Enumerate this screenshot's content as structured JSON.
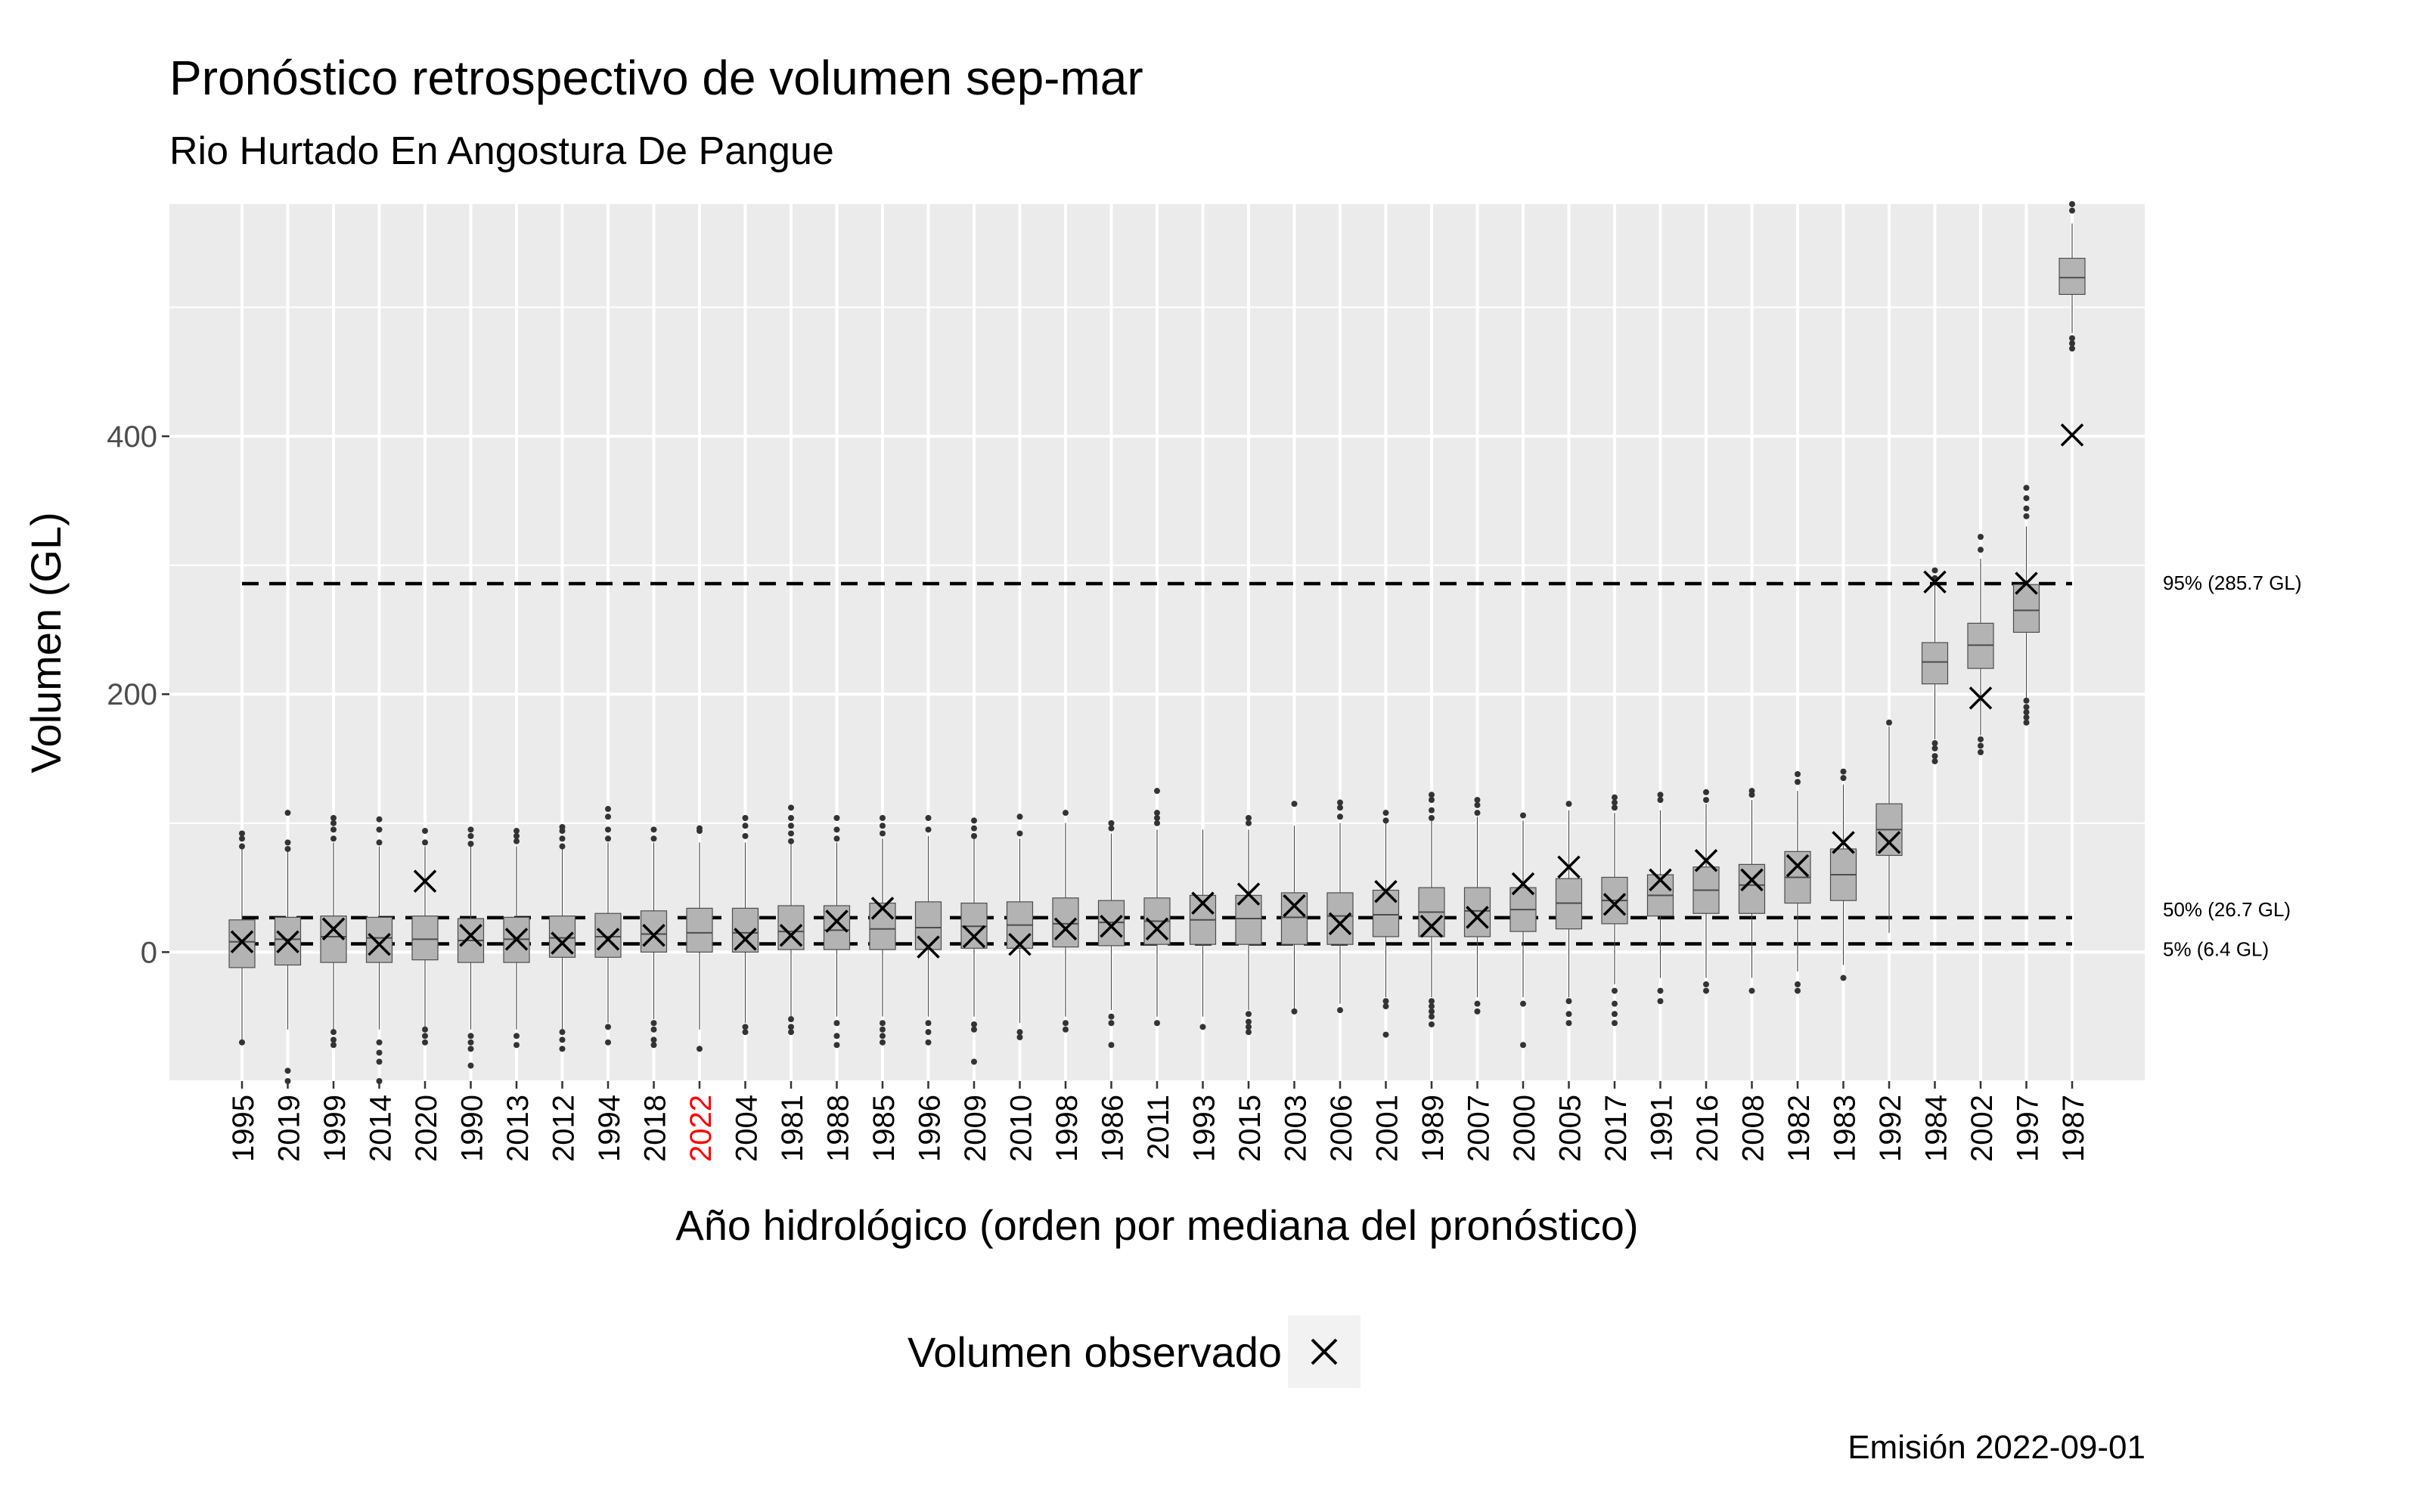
{
  "title": "Pronóstico retrospectivo de volumen sep-mar",
  "subtitle": "Rio Hurtado En Angostura De Pangue",
  "caption": "Emisión 2022-09-01",
  "legend": {
    "title": "",
    "label": "Volumen observado",
    "symbol": "×"
  },
  "colors": {
    "panel": "#ebebeb",
    "grid": "#ffffff",
    "box_fill": "#b3b3b3",
    "box_line": "#4d4d4d",
    "highlight_year": "#ff0000"
  },
  "chart_data": {
    "type": "boxplot",
    "xlabel": "Año hidrológico (orden por mediana del pronóstico)",
    "ylabel": "Volumen (GL)",
    "ylim": [
      -100,
      580
    ],
    "yticks": [
      0,
      200,
      400
    ],
    "highlight_category": "2022",
    "categories": [
      "1995",
      "2019",
      "1999",
      "2014",
      "2020",
      "1990",
      "2013",
      "2012",
      "1994",
      "2018",
      "2022",
      "2004",
      "1981",
      "1988",
      "1985",
      "1996",
      "2009",
      "2010",
      "1998",
      "1986",
      "2011",
      "1993",
      "2015",
      "2003",
      "2006",
      "2001",
      "1989",
      "2007",
      "2000",
      "2005",
      "2017",
      "1991",
      "2016",
      "2008",
      "1982",
      "1983",
      "1992",
      "1984",
      "2002",
      "1997",
      "1987"
    ],
    "boxes": [
      {
        "q1": -12,
        "median": 8,
        "q3": 25,
        "lo": -70,
        "hi": 80,
        "out": [
          -70,
          82,
          88,
          92
        ]
      },
      {
        "q1": -10,
        "median": 10,
        "q3": 27,
        "lo": -60,
        "hi": 80,
        "out": [
          -92,
          -100,
          80,
          85,
          108
        ]
      },
      {
        "q1": -8,
        "median": 12,
        "q3": 28,
        "lo": -60,
        "hi": 85,
        "out": [
          -62,
          -68,
          -72,
          88,
          95,
          100,
          104
        ]
      },
      {
        "q1": -8,
        "median": 11,
        "q3": 27,
        "lo": -60,
        "hi": 82,
        "out": [
          -70,
          -78,
          -85,
          -100,
          85,
          95,
          103
        ]
      },
      {
        "q1": -6,
        "median": 10,
        "q3": 28,
        "lo": -60,
        "hi": 82,
        "out": [
          -60,
          -65,
          -70,
          85,
          94
        ]
      },
      {
        "q1": -8,
        "median": 9,
        "q3": 26,
        "lo": -60,
        "hi": 82,
        "out": [
          -65,
          -70,
          -75,
          -88,
          84,
          90,
          95
        ]
      },
      {
        "q1": -8,
        "median": 10,
        "q3": 27,
        "lo": -60,
        "hi": 82,
        "out": [
          -65,
          -72,
          86,
          90,
          94
        ]
      },
      {
        "q1": -4,
        "median": 11,
        "q3": 28,
        "lo": -60,
        "hi": 82,
        "out": [
          -62,
          -68,
          -75,
          82,
          88,
          94,
          97
        ]
      },
      {
        "q1": -4,
        "median": 12,
        "q3": 30,
        "lo": -55,
        "hi": 85,
        "out": [
          -58,
          -70,
          88,
          95,
          105,
          111
        ]
      },
      {
        "q1": 0,
        "median": 14,
        "q3": 32,
        "lo": -52,
        "hi": 85,
        "out": [
          -55,
          -60,
          -68,
          -72,
          88,
          95
        ]
      },
      {
        "q1": 0,
        "median": 15,
        "q3": 34,
        "lo": -60,
        "hi": 85,
        "out": [
          -75,
          94,
          96
        ]
      },
      {
        "q1": 0,
        "median": 15,
        "q3": 34,
        "lo": -55,
        "hi": 85,
        "out": [
          -58,
          -62,
          90,
          98,
          104
        ]
      },
      {
        "q1": 2,
        "median": 16,
        "q3": 36,
        "lo": -50,
        "hi": 85,
        "out": [
          -52,
          -58,
          -62,
          86,
          92,
          98,
          104,
          112
        ]
      },
      {
        "q1": 2,
        "median": 17,
        "q3": 36,
        "lo": -50,
        "hi": 85,
        "out": [
          -55,
          -65,
          -72,
          88,
          95,
          104
        ]
      },
      {
        "q1": 2,
        "median": 18,
        "q3": 38,
        "lo": -50,
        "hi": 88,
        "out": [
          -55,
          -60,
          -65,
          -70,
          92,
          98,
          104
        ]
      },
      {
        "q1": 2,
        "median": 19,
        "q3": 39,
        "lo": -50,
        "hi": 90,
        "out": [
          -55,
          -62,
          -70,
          95,
          104
        ]
      },
      {
        "q1": 3,
        "median": 20,
        "q3": 38,
        "lo": -50,
        "hi": 88,
        "out": [
          -56,
          -60,
          -85,
          90,
          96,
          102
        ]
      },
      {
        "q1": 3,
        "median": 21,
        "q3": 39,
        "lo": -55,
        "hi": 88,
        "out": [
          -62,
          -66,
          92,
          105
        ]
      },
      {
        "q1": 4,
        "median": 22,
        "q3": 42,
        "lo": -50,
        "hi": 100,
        "out": [
          -55,
          -60,
          108
        ]
      },
      {
        "q1": 5,
        "median": 23,
        "q3": 40,
        "lo": -45,
        "hi": 92,
        "out": [
          -50,
          -55,
          -72,
          96,
          100
        ]
      },
      {
        "q1": 6,
        "median": 24,
        "q3": 42,
        "lo": -50,
        "hi": 95,
        "out": [
          -55,
          100,
          104,
          108,
          125
        ]
      },
      {
        "q1": 6,
        "median": 25,
        "q3": 44,
        "lo": -50,
        "hi": 95,
        "out": [
          -58
        ]
      },
      {
        "q1": 6,
        "median": 26,
        "q3": 44,
        "lo": -45,
        "hi": 95,
        "out": [
          -48,
          -54,
          -58,
          -62,
          100,
          104
        ]
      },
      {
        "q1": 6,
        "median": 27,
        "q3": 46,
        "lo": -45,
        "hi": 98,
        "out": [
          -46,
          115
        ]
      },
      {
        "q1": 6,
        "median": 28,
        "q3": 46,
        "lo": -40,
        "hi": 100,
        "out": [
          -45,
          105,
          112,
          116
        ]
      },
      {
        "q1": 12,
        "median": 29,
        "q3": 48,
        "lo": -35,
        "hi": 100,
        "out": [
          -38,
          -42,
          -64,
          102,
          108
        ]
      },
      {
        "q1": 12,
        "median": 31,
        "q3": 50,
        "lo": -35,
        "hi": 102,
        "out": [
          -38,
          -42,
          -46,
          -50,
          -56,
          104,
          110,
          118,
          122
        ]
      },
      {
        "q1": 12,
        "median": 32,
        "q3": 50,
        "lo": -35,
        "hi": 105,
        "out": [
          -40,
          -46,
          108,
          114,
          118
        ]
      },
      {
        "q1": 16,
        "median": 33,
        "q3": 50,
        "lo": -35,
        "hi": 102,
        "out": [
          -40,
          -72,
          106
        ]
      },
      {
        "q1": 18,
        "median": 38,
        "q3": 57,
        "lo": -35,
        "hi": 110,
        "out": [
          -38,
          -48,
          -55,
          115
        ]
      },
      {
        "q1": 22,
        "median": 40,
        "q3": 58,
        "lo": -25,
        "hi": 108,
        "out": [
          -30,
          -40,
          -48,
          -55,
          112,
          116,
          120
        ]
      },
      {
        "q1": 28,
        "median": 44,
        "q3": 60,
        "lo": -20,
        "hi": 110,
        "out": [
          -30,
          -38,
          118,
          122
        ]
      },
      {
        "q1": 30,
        "median": 48,
        "q3": 66,
        "lo": -20,
        "hi": 115,
        "out": [
          -25,
          -30,
          118,
          124
        ]
      },
      {
        "q1": 30,
        "median": 52,
        "q3": 68,
        "lo": -20,
        "hi": 118,
        "out": [
          -30,
          122,
          125
        ]
      },
      {
        "q1": 38,
        "median": 58,
        "q3": 78,
        "lo": -15,
        "hi": 125,
        "out": [
          -25,
          -30,
          132,
          138
        ]
      },
      {
        "q1": 40,
        "median": 60,
        "q3": 80,
        "lo": -10,
        "hi": 130,
        "out": [
          -20,
          135,
          140
        ]
      },
      {
        "q1": 75,
        "median": 95,
        "q3": 115,
        "lo": 15,
        "hi": 175,
        "out": [
          178
        ]
      },
      {
        "q1": 208,
        "median": 225,
        "q3": 240,
        "lo": 165,
        "hi": 285,
        "out": [
          148,
          152,
          158,
          162,
          290,
          296
        ]
      },
      {
        "q1": 220,
        "median": 238,
        "q3": 255,
        "lo": 168,
        "hi": 305,
        "out": [
          155,
          160,
          165,
          312,
          322
        ]
      },
      {
        "q1": 248,
        "median": 265,
        "q3": 285,
        "lo": 195,
        "hi": 330,
        "out": [
          178,
          182,
          186,
          190,
          195,
          338,
          344,
          352,
          360
        ]
      },
      {
        "q1": 510,
        "median": 523,
        "q3": 538,
        "lo": 480,
        "hi": 565,
        "out": [
          468,
          472,
          476,
          575,
          580
        ]
      }
    ],
    "observed": [
      8,
      8,
      18,
      6,
      55,
      13,
      10,
      7,
      10,
      13,
      null,
      10,
      13,
      24,
      34,
      4,
      12,
      6,
      18,
      20,
      18,
      38,
      45,
      36,
      22,
      47,
      20,
      27,
      53,
      66,
      37,
      56,
      71,
      56,
      67,
      85,
      85,
      287,
      197,
      286,
      401
    ],
    "reference_lines": [
      {
        "value": 285.7,
        "label": "95% (285.7 GL)"
      },
      {
        "value": 26.7,
        "label": "50% (26.7 GL)"
      },
      {
        "value": 6.4,
        "label": "5% (6.4 GL)"
      }
    ]
  }
}
